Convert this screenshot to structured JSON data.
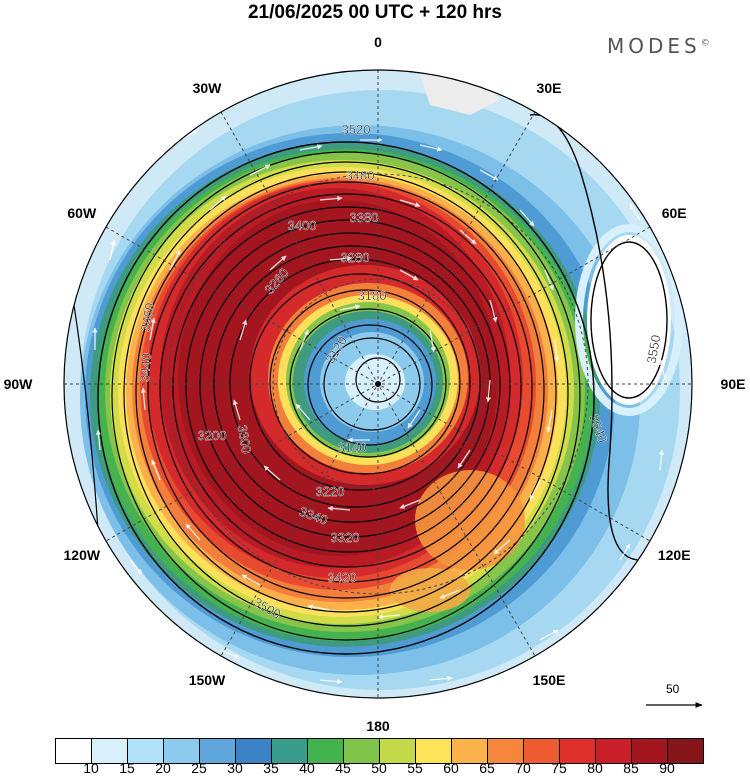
{
  "title": "21/06/2025  00 UTC  + 120 hrs",
  "brand": "MODES",
  "brand_mark": "©",
  "map": {
    "projection": "north-polar-stereographic",
    "longitude_labels": [
      {
        "text": "0",
        "lon": 0
      },
      {
        "text": "30E",
        "lon": 30
      },
      {
        "text": "60E",
        "lon": 60
      },
      {
        "text": "90E",
        "lon": 90
      },
      {
        "text": "120E",
        "lon": 120
      },
      {
        "text": "150E",
        "lon": 150
      },
      {
        "text": "180",
        "lon": 180
      },
      {
        "text": "150W",
        "lon": -150
      },
      {
        "text": "120W",
        "lon": -120
      },
      {
        "text": "90W",
        "lon": -90
      },
      {
        "text": "60W",
        "lon": -60
      },
      {
        "text": "30W",
        "lon": -30
      }
    ],
    "contour_labels": [
      "3120",
      "3140",
      "3180",
      "3200",
      "3220",
      "3260",
      "3280",
      "3300",
      "3320",
      "3340",
      "3380",
      "3400",
      "3420",
      "3440",
      "3460",
      "3480",
      "3500",
      "3520",
      "3540",
      "3550"
    ],
    "wind_reference": {
      "label": "50"
    }
  },
  "colorbar": {
    "ticks": [
      "10",
      "15",
      "20",
      "25",
      "30",
      "35",
      "40",
      "45",
      "50",
      "55",
      "60",
      "65",
      "70",
      "75",
      "80",
      "85",
      "90"
    ],
    "colors": [
      "#ffffff",
      "#d8f0fb",
      "#b2e2f7",
      "#8ccaee",
      "#5ea6dc",
      "#3b83c6",
      "#3a9c8c",
      "#43b34e",
      "#7fc34b",
      "#c4d94a",
      "#fde35a",
      "#fbb24a",
      "#f6863c",
      "#ee5a32",
      "#e0302c",
      "#c81f28",
      "#a3161f",
      "#851519"
    ]
  }
}
